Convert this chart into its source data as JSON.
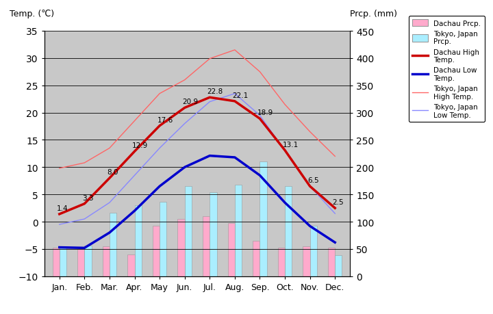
{
  "months": [
    "Jan.",
    "Feb.",
    "Mar.",
    "Apr.",
    "May",
    "Jun.",
    "Jul.",
    "Aug.",
    "Sep.",
    "Oct.",
    "Nov.",
    "Dec."
  ],
  "dachau_high": [
    1.4,
    3.3,
    8.0,
    12.9,
    17.6,
    20.9,
    22.8,
    22.1,
    18.9,
    13.1,
    6.5,
    2.5
  ],
  "dachau_low": [
    -4.7,
    -4.8,
    -2.0,
    2.0,
    6.5,
    10.0,
    12.1,
    11.8,
    8.5,
    3.5,
    -0.8,
    -3.8
  ],
  "tokyo_high": [
    9.8,
    10.8,
    13.5,
    18.5,
    23.5,
    26.0,
    29.9,
    31.5,
    27.5,
    21.5,
    16.5,
    12.0
  ],
  "tokyo_low": [
    -0.5,
    0.5,
    3.5,
    8.5,
    13.5,
    18.0,
    22.0,
    23.5,
    19.5,
    13.0,
    6.5,
    1.5
  ],
  "dachau_prcp": [
    52,
    50,
    55,
    40,
    92,
    105,
    110,
    98,
    65,
    52,
    55,
    52
  ],
  "tokyo_prcp": [
    52,
    56,
    117,
    130,
    137,
    165,
    154,
    168,
    210,
    165,
    93,
    39
  ],
  "background_color": "#c8c8c8",
  "dachau_high_color": "#cc0000",
  "dachau_low_color": "#0000cc",
  "tokyo_high_color": "#ff6666",
  "tokyo_low_color": "#8888ff",
  "dachau_prcp_color": "#ffaacc",
  "tokyo_prcp_color": "#aaeeff",
  "temp_min": -10,
  "temp_max": 35,
  "prcp_min": 0,
  "prcp_max": 450,
  "label_fontsize": 7.5,
  "axis_fontsize": 9,
  "title_left": "Temp. (℃)",
  "title_right": "Prcp. (mm)",
  "legend_entries": [
    "Dachau Prcp.",
    "Tokyo, Japan\nPrcp.",
    "Dachau High\nTemp.",
    "Dachau Low\nTemp.",
    "Tokyo, Japan\nHigh Temp.",
    "Tokyo, Japan\nLow Temp."
  ]
}
